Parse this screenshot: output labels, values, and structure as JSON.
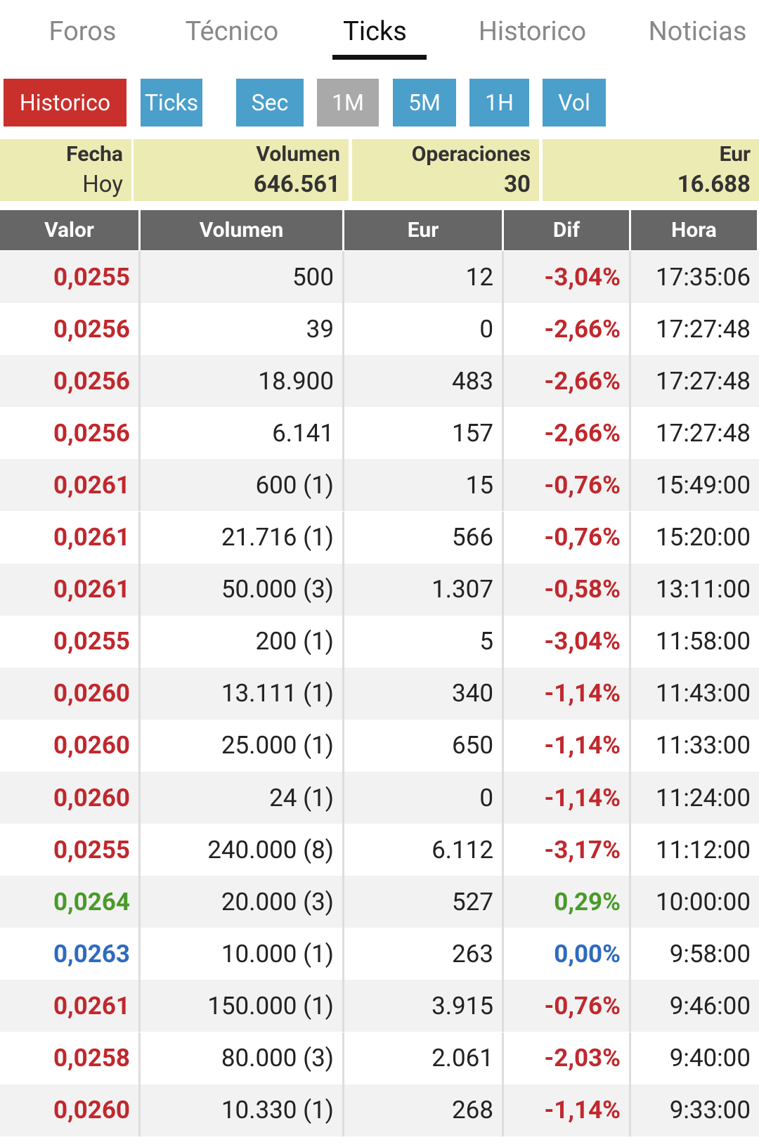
{
  "tabs": {
    "items": [
      "Foros",
      "Técnico",
      "Ticks",
      "Historico",
      "Noticias"
    ],
    "active": 2
  },
  "buttons": [
    {
      "label": "Historico",
      "color": "#c9302c"
    },
    {
      "label": "Ticks",
      "color": "#4b9fcb"
    },
    {
      "label": "Sec",
      "color": "#4b9fcb"
    },
    {
      "label": "1M",
      "color": "#a9a9a9"
    },
    {
      "label": "5M",
      "color": "#4b9fcb"
    },
    {
      "label": "1H",
      "color": "#4b9fcb"
    },
    {
      "label": "Vol",
      "color": "#4b9fcb"
    }
  ],
  "summary": [
    {
      "label": "Fecha",
      "value": "Hoy"
    },
    {
      "label": "Volumen",
      "value": "646.561"
    },
    {
      "label": "Operaciones",
      "value": "30"
    },
    {
      "label": "Eur",
      "value": "16.688"
    }
  ],
  "table": {
    "headers": [
      "Valor",
      "Volumen",
      "Eur",
      "Dif",
      "Hora"
    ],
    "rows": [
      {
        "color": "#c0282d",
        "cells": [
          "0,0255",
          "500",
          "12",
          "-3,04%",
          "17:35:06"
        ]
      },
      {
        "color": "#c0282d",
        "cells": [
          "0,0256",
          "39",
          "0",
          "-2,66%",
          "17:27:48"
        ]
      },
      {
        "color": "#c0282d",
        "cells": [
          "0,0256",
          "18.900",
          "483",
          "-2,66%",
          "17:27:48"
        ]
      },
      {
        "color": "#c0282d",
        "cells": [
          "0,0256",
          "6.141",
          "157",
          "-2,66%",
          "17:27:48"
        ]
      },
      {
        "color": "#c0282d",
        "cells": [
          "0,0261",
          "600 (1)",
          "15",
          "-0,76%",
          "15:49:00"
        ]
      },
      {
        "color": "#c0282d",
        "cells": [
          "0,0261",
          "21.716 (1)",
          "566",
          "-0,76%",
          "15:20:00"
        ]
      },
      {
        "color": "#c0282d",
        "cells": [
          "0,0261",
          "50.000 (3)",
          "1.307",
          "-0,58%",
          "13:11:00"
        ]
      },
      {
        "color": "#c0282d",
        "cells": [
          "0,0255",
          "200 (1)",
          "5",
          "-3,04%",
          "11:58:00"
        ]
      },
      {
        "color": "#c0282d",
        "cells": [
          "0,0260",
          "13.111 (1)",
          "340",
          "-1,14%",
          "11:43:00"
        ]
      },
      {
        "color": "#c0282d",
        "cells": [
          "0,0260",
          "25.000 (1)",
          "650",
          "-1,14%",
          "11:33:00"
        ]
      },
      {
        "color": "#c0282d",
        "cells": [
          "0,0260",
          "24 (1)",
          "0",
          "-1,14%",
          "11:24:00"
        ]
      },
      {
        "color": "#c0282d",
        "cells": [
          "0,0255",
          "240.000 (8)",
          "6.112",
          "-3,17%",
          "11:12:00"
        ]
      },
      {
        "color": "#4a9a2a",
        "cells": [
          "0,0264",
          "20.000 (3)",
          "527",
          "0,29%",
          "10:00:00"
        ]
      },
      {
        "color": "#2e6bc0",
        "cells": [
          "0,0263",
          "10.000 (1)",
          "263",
          "0,00%",
          "9:58:00"
        ]
      },
      {
        "color": "#c0282d",
        "cells": [
          "0,0261",
          "150.000 (1)",
          "3.915",
          "-0,76%",
          "9:46:00"
        ]
      },
      {
        "color": "#c0282d",
        "cells": [
          "0,0258",
          "80.000 (3)",
          "2.061",
          "-2,03%",
          "9:40:00"
        ]
      },
      {
        "color": "#c0282d",
        "cells": [
          "0,0260",
          "10.330 (1)",
          "268",
          "-1,14%",
          "9:33:00"
        ]
      }
    ]
  }
}
